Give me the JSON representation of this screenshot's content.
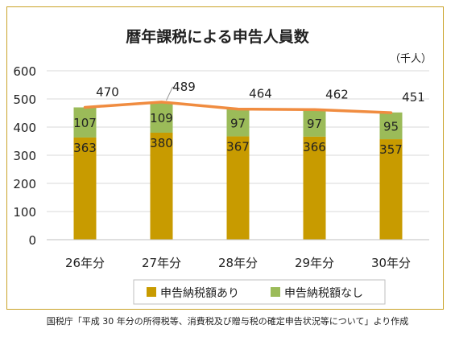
{
  "chart_data": {
    "type": "bar",
    "stacked": true,
    "title": "暦年課税による申告人員数",
    "unit_label": "（千人）",
    "categories": [
      "26年分",
      "27年分",
      "28年分",
      "29年分",
      "30年分"
    ],
    "series": [
      {
        "name": "申告納税額あり",
        "values": [
          363,
          380,
          367,
          366,
          357
        ],
        "color": "#c89b00"
      },
      {
        "name": "申告納税額なし",
        "values": [
          107,
          109,
          97,
          97,
          95
        ],
        "color": "#9bbb59"
      }
    ],
    "totals": {
      "values": [
        470,
        489,
        464,
        462,
        451
      ],
      "line_color": "#f08c40"
    },
    "ylim": [
      0,
      600
    ],
    "yticks": [
      0,
      100,
      200,
      300,
      400,
      500,
      600
    ],
    "grid": true,
    "legend": "bottom"
  },
  "source_note": "国税庁「平成 30 年分の所得税等、消費税及び贈与税の確定申告状況等について」より作成"
}
